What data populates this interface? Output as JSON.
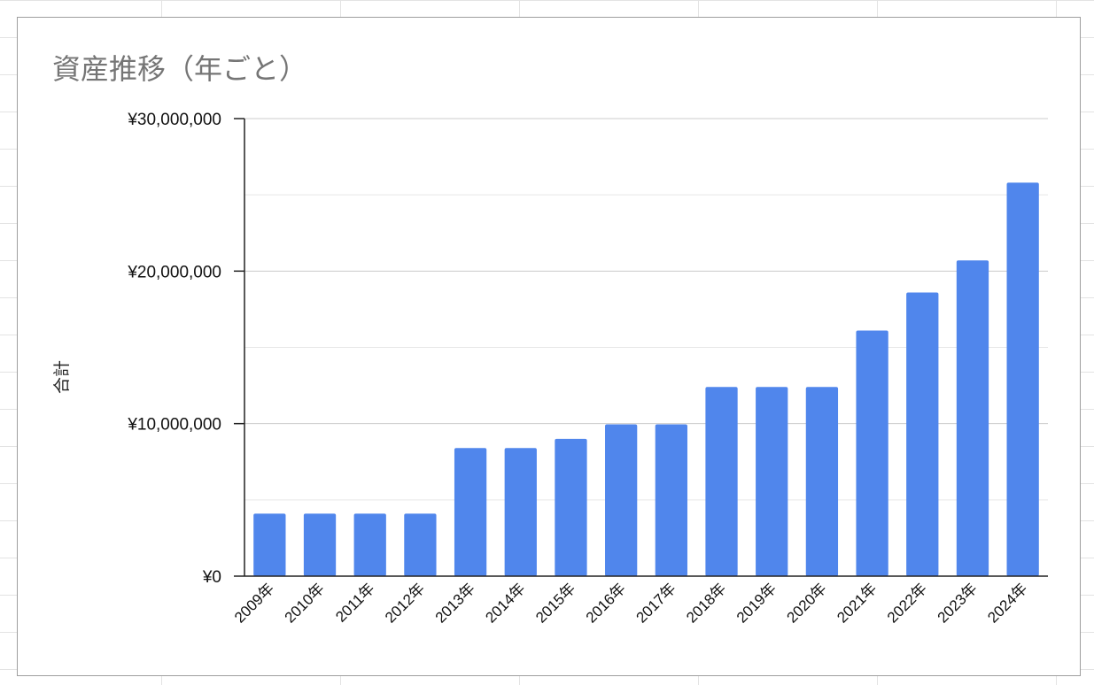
{
  "chart_data": {
    "type": "bar",
    "title": "資産推移（年ごと）",
    "xlabel": "",
    "ylabel": "合計",
    "ylim": [
      0,
      30000000
    ],
    "yticks": [
      0,
      10000000,
      20000000,
      30000000
    ],
    "ytick_labels": [
      "¥0",
      "¥10,000,000",
      "¥20,000,000",
      "¥30,000,000"
    ],
    "minor_gridlines": true,
    "grid": true,
    "legend": "none",
    "bar_color": "#5086ec",
    "categories": [
      "2009年",
      "2010年",
      "2011年",
      "2012年",
      "2013年",
      "2014年",
      "2015年",
      "2016年",
      "2017年",
      "2018年",
      "2019年",
      "2020年",
      "2021年",
      "2022年",
      "2023年",
      "2024年"
    ],
    "values": [
      4100000,
      4100000,
      4100000,
      4100000,
      8400000,
      8400000,
      9000000,
      9950000,
      9950000,
      12400000,
      12400000,
      12400000,
      16100000,
      18600000,
      20700000,
      25800000
    ]
  }
}
